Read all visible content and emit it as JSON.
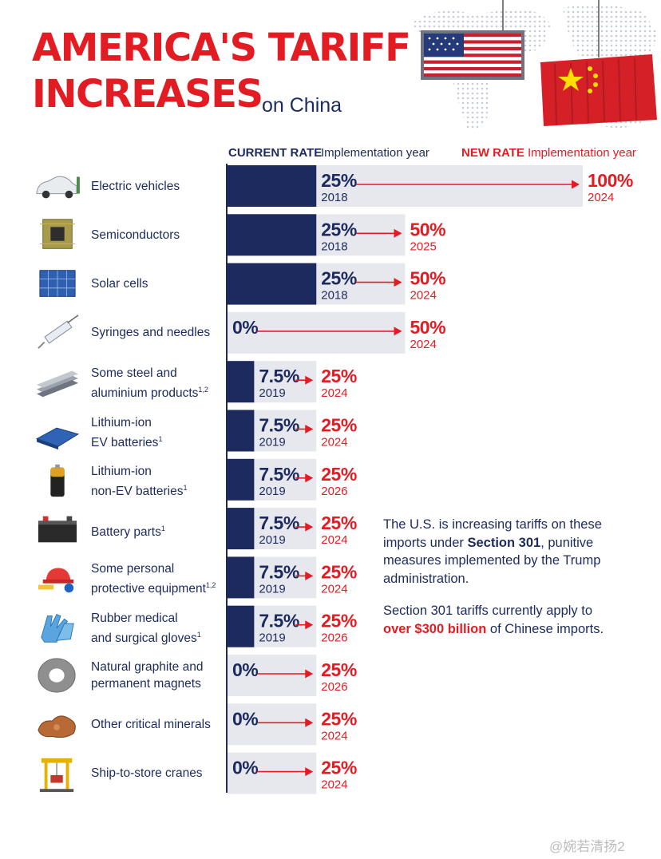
{
  "title": {
    "line1": "AMERICA'S TARIFF",
    "line2": "INCREASES",
    "suffix": "on China"
  },
  "headers": {
    "current_rate": "CURRENT RATE",
    "current_sub": "Implementation year",
    "new_rate": "NEW RATE",
    "new_sub": "Implementation year"
  },
  "colors": {
    "navy": "#1c2a5e",
    "red": "#e31c23",
    "track": "#e6e8ee"
  },
  "chart_data": {
    "type": "bar",
    "categories": [
      "Electric vehicles",
      "Semiconductors",
      "Solar cells",
      "Syringes and needles",
      "Some steel and aluminium products",
      "Lithium-ion EV batteries",
      "Lithium-ion non-EV batteries",
      "Battery parts",
      "Some personal protective equipment",
      "Rubber medical and surgical gloves",
      "Natural graphite and permanent magnets",
      "Other critical minerals",
      "Ship-to-store cranes"
    ],
    "series": [
      {
        "name": "CURRENT RATE",
        "values": [
          25,
          25,
          25,
          0,
          7.5,
          7.5,
          7.5,
          7.5,
          7.5,
          7.5,
          0,
          0,
          0
        ],
        "years": [
          "2018",
          "2018",
          "2018",
          "",
          "2019",
          "2019",
          "2019",
          "2019",
          "2019",
          "2019",
          "",
          "",
          ""
        ]
      },
      {
        "name": "NEW RATE",
        "values": [
          100,
          50,
          50,
          50,
          25,
          25,
          25,
          25,
          25,
          25,
          25,
          25,
          25
        ],
        "years": [
          "2024",
          "2025",
          "2024",
          "2024",
          "2024",
          "2024",
          "2026",
          "2024",
          "2024",
          "2026",
          "2026",
          "2024",
          "2024"
        ]
      }
    ],
    "ylim": [
      0,
      100
    ],
    "unit": "%"
  },
  "rows": [
    {
      "label": "Electric vehicles",
      "sup": "",
      "icon": "electric-car-icon"
    },
    {
      "label": "Semiconductors",
      "sup": "",
      "icon": "chip-icon"
    },
    {
      "label": "Solar cells",
      "sup": "",
      "icon": "solar-panel-icon"
    },
    {
      "label": "Syringes and needles",
      "sup": "",
      "icon": "syringe-icon"
    },
    {
      "label": "Some steel and\naluminium products",
      "sup": "1,2",
      "icon": "steel-beam-icon"
    },
    {
      "label": "Lithium-ion\nEV batteries",
      "sup": "1",
      "icon": "ev-battery-icon"
    },
    {
      "label": "Lithium-ion\nnon-EV batteries",
      "sup": "1",
      "icon": "battery-cell-icon"
    },
    {
      "label": "Battery parts",
      "sup": "1",
      "icon": "car-battery-icon"
    },
    {
      "label": "Some personal\nprotective equipment",
      "sup": "1,2",
      "icon": "hard-hat-icon"
    },
    {
      "label": "Rubber medical\nand surgical gloves",
      "sup": "1",
      "icon": "gloves-icon"
    },
    {
      "label": "Natural graphite and\npermanent magnets",
      "sup": "",
      "icon": "magnet-ring-icon"
    },
    {
      "label": "Other critical minerals",
      "sup": "",
      "icon": "copper-mineral-icon"
    },
    {
      "label": "Ship-to-store cranes",
      "sup": "",
      "icon": "crane-icon"
    }
  ],
  "note": {
    "p1_a": "The U.S. is increasing tariffs on these imports under ",
    "p1_b": "Section 301",
    "p1_c": ", punitive measures implemented by the Trump administration.",
    "p2_a": "Section 301 tariffs currently apply to ",
    "p2_b": "over $300 billion",
    "p2_c": " of Chinese imports."
  },
  "watermark": "@婉若清扬2"
}
